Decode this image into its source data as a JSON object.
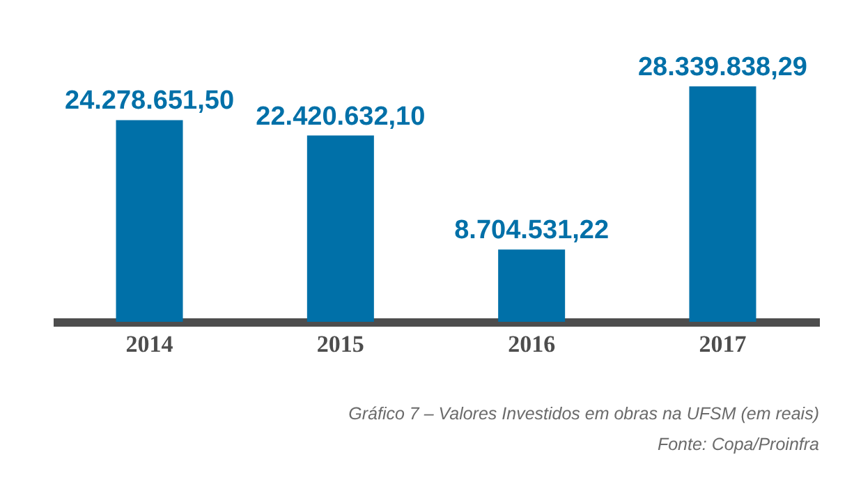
{
  "chart_data": {
    "type": "bar",
    "categories": [
      "2014",
      "2015",
      "2016",
      "2017"
    ],
    "values": [
      24278651.5,
      22420632.1,
      8704531.22,
      28339838.29
    ],
    "value_labels": [
      "24.278.651,50",
      "22.420.632,10",
      "8.704.531,22",
      "28.339.838,29"
    ],
    "color": "#0070a8",
    "grid": false,
    "annotations": [
      "Gráfico 7 – Valores Investidos em obras na UFSM (em reais)",
      "Fonte: Copa/Proinfra"
    ]
  }
}
